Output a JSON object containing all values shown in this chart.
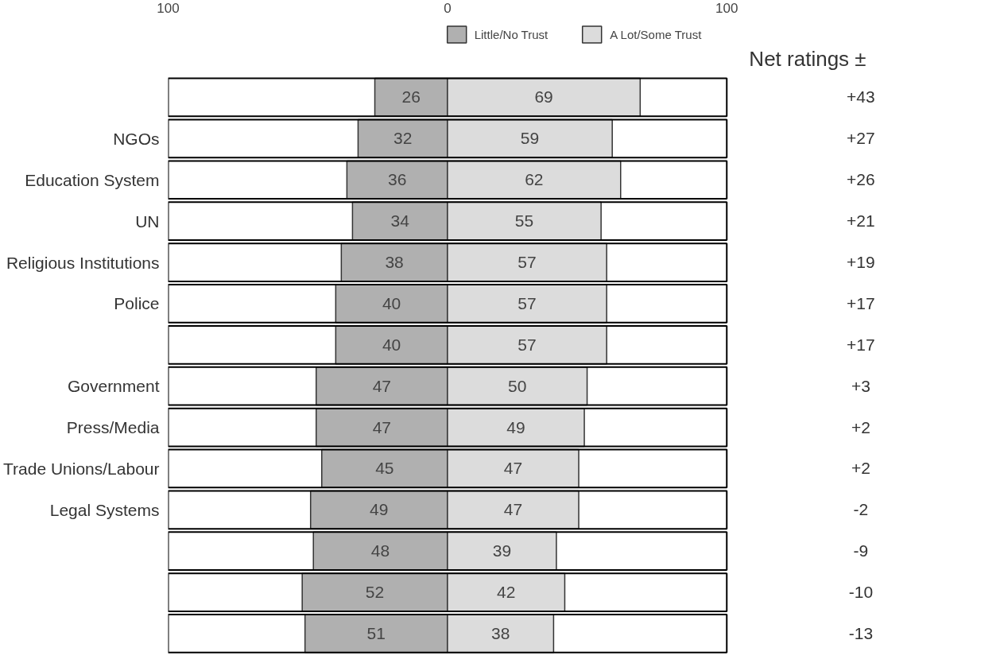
{
  "chart_data": {
    "type": "bar",
    "orientation": "horizontal",
    "categories": [
      null,
      "NGOs",
      "Education System",
      "UN",
      "Religious Institutions",
      "Police",
      null,
      "Government",
      "Press/Media",
      "Trade Unions/Labour",
      "Legal Systems",
      null,
      null,
      null
    ],
    "series": [
      {
        "name": "Little/No Trust",
        "color": "#b0b0b0",
        "values": [
          26,
          32,
          36,
          34,
          38,
          40,
          40,
          47,
          47,
          45,
          49,
          48,
          52,
          51
        ],
        "base": [
          -26,
          -32,
          -36,
          -34,
          -38,
          -40,
          -40,
          -47,
          -47,
          -45,
          -49,
          -48,
          -52,
          -51
        ]
      },
      {
        "name": "A Lot/Some Trust",
        "color": "#dcdcdc",
        "values": [
          69,
          59,
          62,
          55,
          57,
          57,
          57,
          50,
          49,
          47,
          47,
          39,
          42,
          38
        ]
      }
    ],
    "data_labels": true,
    "annotations": [
      "Net ratings ±",
      "+43",
      "+27",
      "+26",
      "+21",
      "+19",
      "+17",
      "+17",
      "+3",
      "+2",
      "+2",
      "-2",
      "-9",
      "-10",
      "-13"
    ],
    "xlim": [
      -100,
      100
    ],
    "xticks": [
      {
        "value": -100,
        "label": "100"
      },
      0,
      100
    ],
    "legend": "top"
  }
}
